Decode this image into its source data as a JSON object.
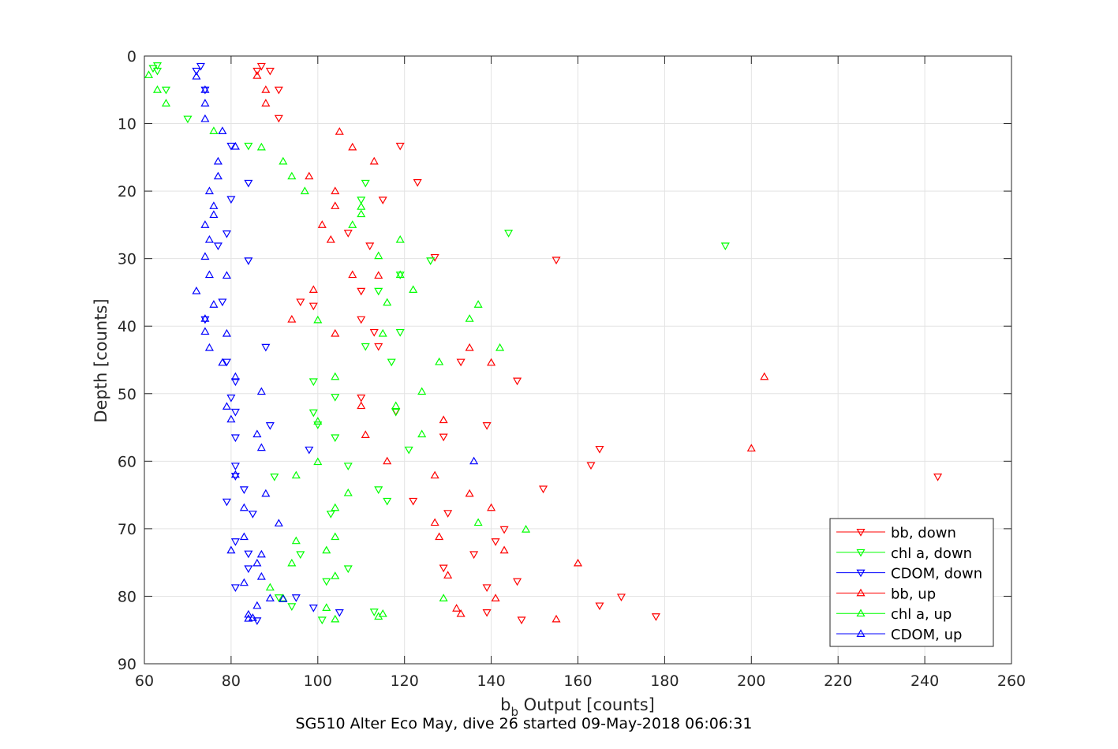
{
  "chart_data": {
    "type": "scatter",
    "xlabel_base": "b",
    "xlabel_sub": "b",
    "xlabel_rest": " Output [counts]",
    "ylabel": "Depth [counts]",
    "caption": "SG510 Alter Eco May, dive 26 started 09-May-2018 06:06:31",
    "xlim": [
      60,
      260
    ],
    "ylim": [
      0,
      90
    ],
    "y_reversed": true,
    "grid": true,
    "x_ticks": [
      60,
      80,
      100,
      120,
      140,
      160,
      180,
      200,
      220,
      240,
      260
    ],
    "y_ticks": [
      0,
      10,
      20,
      30,
      40,
      50,
      60,
      70,
      80,
      90
    ],
    "legend_position": "bottom-right",
    "series": [
      {
        "name": "bb, down",
        "color": "#ff0000",
        "marker": "triangle-down",
        "points": [
          [
            87,
            1.5
          ],
          [
            89,
            2.2
          ],
          [
            86,
            2.2
          ],
          [
            91,
            5
          ],
          [
            91,
            9.2
          ],
          [
            119,
            13.3
          ],
          [
            123,
            18.7
          ],
          [
            115,
            21.3
          ],
          [
            107,
            26.2
          ],
          [
            112,
            28.1
          ],
          [
            155,
            30.2
          ],
          [
            127,
            29.8
          ],
          [
            110,
            34.8
          ],
          [
            96,
            36.4
          ],
          [
            99,
            37
          ],
          [
            110,
            39
          ],
          [
            113,
            40.9
          ],
          [
            114,
            43
          ],
          [
            133,
            45.3
          ],
          [
            146,
            48.1
          ],
          [
            110,
            50.6
          ],
          [
            118,
            52.6
          ],
          [
            139,
            54.7
          ],
          [
            129,
            56.4
          ],
          [
            165,
            58.2
          ],
          [
            163,
            60.6
          ],
          [
            243,
            62.3
          ],
          [
            152,
            64.1
          ],
          [
            122,
            65.9
          ],
          [
            130,
            67.7
          ],
          [
            143,
            70.1
          ],
          [
            141,
            71.9
          ],
          [
            136,
            73.8
          ],
          [
            129,
            75.8
          ],
          [
            146,
            77.8
          ],
          [
            139,
            78.7
          ],
          [
            170,
            80.1
          ],
          [
            165,
            81.4
          ],
          [
            139,
            82.4
          ],
          [
            178,
            83
          ],
          [
            147,
            83.5
          ]
        ]
      },
      {
        "name": "chl a, down",
        "color": "#00ff00",
        "marker": "triangle-down",
        "points": [
          [
            63,
            1.4
          ],
          [
            62,
            1.8
          ],
          [
            63,
            2.2
          ],
          [
            65,
            5
          ],
          [
            70,
            9.3
          ],
          [
            84,
            13.3
          ],
          [
            111,
            18.8
          ],
          [
            110,
            21.3
          ],
          [
            144,
            26.2
          ],
          [
            194,
            28.1
          ],
          [
            126,
            30.3
          ],
          [
            119,
            32.4
          ],
          [
            114,
            34.8
          ],
          [
            119,
            40.9
          ],
          [
            111,
            43
          ],
          [
            117,
            45.3
          ],
          [
            99,
            48.2
          ],
          [
            104,
            50.5
          ],
          [
            118,
            52.7
          ],
          [
            99,
            52.8
          ],
          [
            100,
            54.6
          ],
          [
            104,
            56.5
          ],
          [
            121,
            58.3
          ],
          [
            107,
            60.7
          ],
          [
            90,
            62.3
          ],
          [
            114,
            64.2
          ],
          [
            116,
            65.9
          ],
          [
            103,
            67.8
          ],
          [
            96,
            73.8
          ],
          [
            107,
            75.9
          ],
          [
            102,
            77.8
          ],
          [
            91,
            80.2
          ],
          [
            94,
            81.5
          ],
          [
            113,
            82.3
          ],
          [
            101,
            83.5
          ]
        ]
      },
      {
        "name": "CDOM, down",
        "color": "#0000ff",
        "marker": "triangle-down",
        "points": [
          [
            73,
            1.5
          ],
          [
            72,
            2.2
          ],
          [
            74,
            5
          ],
          [
            80,
            13.3
          ],
          [
            84,
            18.8
          ],
          [
            80,
            21.2
          ],
          [
            79,
            26.3
          ],
          [
            77,
            28.1
          ],
          [
            84,
            30.3
          ],
          [
            78,
            36.4
          ],
          [
            74,
            39
          ],
          [
            88,
            43.1
          ],
          [
            79,
            45.3
          ],
          [
            81,
            48.2
          ],
          [
            80,
            50.6
          ],
          [
            81,
            52.7
          ],
          [
            89,
            54.7
          ],
          [
            81,
            56.5
          ],
          [
            98,
            58.3
          ],
          [
            81,
            60.7
          ],
          [
            81,
            62.2
          ],
          [
            83,
            64.2
          ],
          [
            79,
            66
          ],
          [
            85,
            67.8
          ],
          [
            81,
            71.9
          ],
          [
            84,
            73.7
          ],
          [
            84,
            75.9
          ],
          [
            81,
            78.7
          ],
          [
            95,
            80.2
          ],
          [
            99,
            81.7
          ],
          [
            105,
            82.4
          ],
          [
            86,
            83.6
          ]
        ]
      },
      {
        "name": "bb, up",
        "color": "#ff0000",
        "marker": "triangle-up",
        "points": [
          [
            86,
            2.9
          ],
          [
            88,
            5
          ],
          [
            88,
            7
          ],
          [
            105,
            11.2
          ],
          [
            108,
            13.5
          ],
          [
            113,
            15.6
          ],
          [
            98,
            17.8
          ],
          [
            104,
            20
          ],
          [
            104,
            22.2
          ],
          [
            101,
            25
          ],
          [
            103,
            27.2
          ],
          [
            108,
            32.4
          ],
          [
            114,
            32.5
          ],
          [
            99,
            34.6
          ],
          [
            94,
            39
          ],
          [
            104,
            41.1
          ],
          [
            135,
            43.2
          ],
          [
            140,
            45.4
          ],
          [
            203,
            47.5
          ],
          [
            110,
            51.8
          ],
          [
            129,
            53.9
          ],
          [
            111,
            56.1
          ],
          [
            200,
            58.1
          ],
          [
            116,
            60
          ],
          [
            127,
            62.1
          ],
          [
            135,
            64.8
          ],
          [
            140,
            66.9
          ],
          [
            127,
            69.1
          ],
          [
            128,
            71.2
          ],
          [
            143,
            73.2
          ],
          [
            160,
            75.1
          ],
          [
            130,
            76.9
          ],
          [
            141,
            80.3
          ],
          [
            132,
            81.8
          ],
          [
            133,
            82.6
          ],
          [
            155,
            83.4
          ]
        ]
      },
      {
        "name": "chl a, up",
        "color": "#00ff00",
        "marker": "triangle-up",
        "points": [
          [
            61,
            2.8
          ],
          [
            63,
            5
          ],
          [
            65,
            7
          ],
          [
            76,
            11.1
          ],
          [
            87,
            13.5
          ],
          [
            92,
            15.6
          ],
          [
            94,
            17.8
          ],
          [
            97,
            20
          ],
          [
            110,
            22.3
          ],
          [
            110,
            23.4
          ],
          [
            108,
            25
          ],
          [
            119,
            27.2
          ],
          [
            114,
            29.6
          ],
          [
            119,
            32.4
          ],
          [
            122,
            34.6
          ],
          [
            116,
            36.5
          ],
          [
            137,
            36.8
          ],
          [
            135,
            38.9
          ],
          [
            100,
            39.1
          ],
          [
            115,
            41.1
          ],
          [
            142,
            43.2
          ],
          [
            128,
            45.3
          ],
          [
            104,
            47.5
          ],
          [
            124,
            49.7
          ],
          [
            118,
            51.8
          ],
          [
            100,
            54.1
          ],
          [
            124,
            56
          ],
          [
            100,
            60.1
          ],
          [
            95,
            62.1
          ],
          [
            107,
            64.7
          ],
          [
            104,
            66.9
          ],
          [
            137,
            69.1
          ],
          [
            148,
            70.1
          ],
          [
            95,
            71.8
          ],
          [
            104,
            71.2
          ],
          [
            102,
            73.2
          ],
          [
            94,
            75.1
          ],
          [
            104,
            77
          ],
          [
            89,
            78.7
          ],
          [
            92,
            80.3
          ],
          [
            129,
            80.3
          ],
          [
            102,
            81.7
          ],
          [
            115,
            82.6
          ],
          [
            114,
            83
          ],
          [
            104,
            83.4
          ]
        ]
      },
      {
        "name": "CDOM, up",
        "color": "#0000ff",
        "marker": "triangle-up",
        "points": [
          [
            72,
            3
          ],
          [
            74,
            5
          ],
          [
            74,
            7
          ],
          [
            74,
            9.3
          ],
          [
            78,
            11.1
          ],
          [
            81,
            13.4
          ],
          [
            77,
            15.6
          ],
          [
            77,
            17.8
          ],
          [
            75,
            20
          ],
          [
            76,
            22.2
          ],
          [
            76,
            23.5
          ],
          [
            74,
            25
          ],
          [
            75,
            27.2
          ],
          [
            74,
            29.7
          ],
          [
            75,
            32.4
          ],
          [
            79,
            32.5
          ],
          [
            72,
            34.8
          ],
          [
            76,
            36.8
          ],
          [
            74,
            38.9
          ],
          [
            74,
            40.8
          ],
          [
            79,
            41.1
          ],
          [
            75,
            43.2
          ],
          [
            78,
            45.4
          ],
          [
            81,
            47.5
          ],
          [
            87,
            49.7
          ],
          [
            79,
            51.9
          ],
          [
            80,
            53.8
          ],
          [
            86,
            56
          ],
          [
            87,
            58
          ],
          [
            136,
            60
          ],
          [
            81,
            62
          ],
          [
            88,
            64.8
          ],
          [
            83,
            66.9
          ],
          [
            91,
            69.2
          ],
          [
            80,
            73.2
          ],
          [
            83,
            71.2
          ],
          [
            87,
            73.8
          ],
          [
            86,
            75.1
          ],
          [
            87,
            77.1
          ],
          [
            83,
            78
          ],
          [
            86,
            81.4
          ],
          [
            89,
            80.3
          ],
          [
            92,
            80.4
          ],
          [
            84,
            82.7
          ],
          [
            85,
            83.2
          ],
          [
            84,
            83.3
          ]
        ]
      }
    ]
  }
}
